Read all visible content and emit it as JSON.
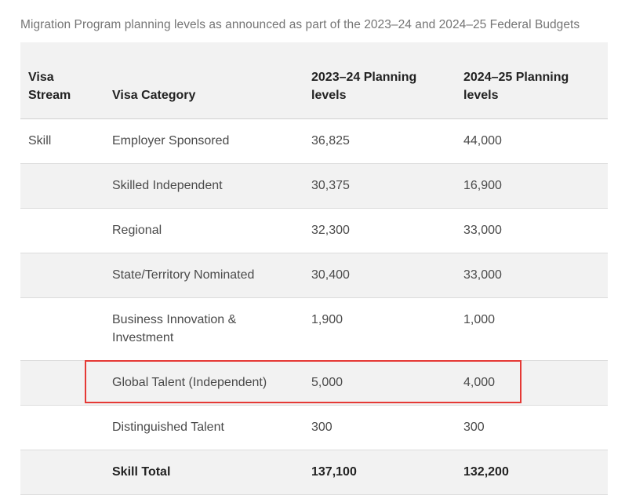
{
  "caption": "Migration Program planning levels as announced as part of the 2023–24 and 2024–25 Federal Budgets",
  "table": {
    "headers": {
      "visa_stream": "Visa Stream",
      "visa_category": "Visa Category",
      "planning_2023_24": "2023–24 Planning levels",
      "planning_2024_25": "2024–25 Planning levels"
    },
    "rows": [
      {
        "stream": "Skill",
        "category": "Employer Sponsored",
        "y2023_24": "36,825",
        "y2024_25": "44,000"
      },
      {
        "stream": "",
        "category": "Skilled Independent",
        "y2023_24": "30,375",
        "y2024_25": "16,900"
      },
      {
        "stream": "",
        "category": "Regional",
        "y2023_24": "32,300",
        "y2024_25": "33,000"
      },
      {
        "stream": "",
        "category": "State/Territory Nominated",
        "y2023_24": "30,400",
        "y2024_25": "33,000"
      },
      {
        "stream": "",
        "category": "Business Innovation & Investment",
        "y2023_24": "1,900",
        "y2024_25": "1,000"
      },
      {
        "stream": "",
        "category": "Global Talent (Independent)",
        "y2023_24": "5,000",
        "y2024_25": "4,000"
      },
      {
        "stream": "",
        "category": "Distinguished Talent",
        "y2023_24": "300",
        "y2024_25": "300"
      }
    ],
    "total": {
      "stream": "",
      "category": "Skill Total",
      "y2023_24": "137,100",
      "y2024_25": "132,200"
    }
  },
  "highlight": {
    "color": "#e53935",
    "row_category": "Global Talent (Independent)"
  }
}
